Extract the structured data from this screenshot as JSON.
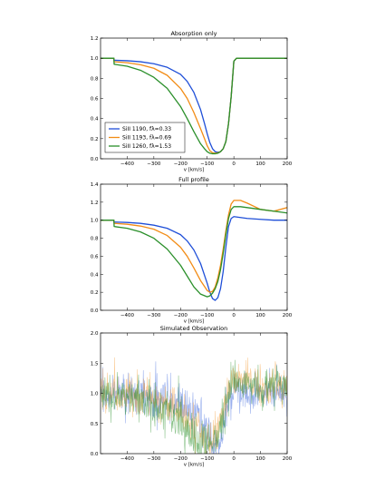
{
  "chart_data": [
    {
      "type": "line",
      "title": "Absorption only",
      "xlabel": "v [km/s]",
      "ylabel": "",
      "xlim": [
        -500,
        200
      ],
      "ylim": [
        0.0,
        1.2
      ],
      "xticks": [
        -400,
        -300,
        -200,
        -100,
        0,
        100,
        200
      ],
      "yticks": [
        0.0,
        0.2,
        0.4,
        0.6,
        0.8,
        1.0,
        1.2
      ],
      "grid": false,
      "legend": {
        "placement": "lower-left",
        "entries": [
          "SiII 1190, fλ=0.33",
          "SiII 1193, fλ=0.69",
          "SiII 1260, fλ=1.53"
        ]
      },
      "series": [
        {
          "name": "SiII 1190, fλ=0.33",
          "color": "#1f4fd8",
          "x": [
            -500,
            -450,
            -449,
            -400,
            -350,
            -300,
            -250,
            -200,
            -175,
            -150,
            -125,
            -110,
            -100,
            -90,
            -80,
            -70,
            -60,
            -50,
            -40,
            -30,
            -20,
            -10,
            0,
            10,
            50,
            100,
            150,
            200
          ],
          "y": [
            1.0,
            1.0,
            0.98,
            0.975,
            0.965,
            0.945,
            0.91,
            0.84,
            0.77,
            0.66,
            0.49,
            0.35,
            0.25,
            0.16,
            0.1,
            0.07,
            0.065,
            0.07,
            0.1,
            0.17,
            0.35,
            0.62,
            0.97,
            1.0,
            1.0,
            1.0,
            1.0,
            1.0
          ]
        },
        {
          "name": "SiII 1193, fλ=0.69",
          "color": "#f28c16",
          "x": [
            -500,
            -450,
            -449,
            -400,
            -350,
            -300,
            -250,
            -200,
            -175,
            -150,
            -125,
            -110,
            -100,
            -90,
            -80,
            -70,
            -60,
            -50,
            -40,
            -30,
            -20,
            -10,
            0,
            10,
            50,
            100,
            150,
            200
          ],
          "y": [
            1.0,
            1.0,
            0.965,
            0.955,
            0.935,
            0.9,
            0.83,
            0.7,
            0.6,
            0.46,
            0.3,
            0.2,
            0.13,
            0.08,
            0.06,
            0.055,
            0.06,
            0.07,
            0.1,
            0.17,
            0.35,
            0.62,
            0.97,
            1.0,
            1.0,
            1.0,
            1.0,
            1.0
          ]
        },
        {
          "name": "SiII 1260, fλ=1.53",
          "color": "#2a8f2a",
          "x": [
            -500,
            -450,
            -449,
            -400,
            -350,
            -300,
            -250,
            -200,
            -175,
            -150,
            -125,
            -110,
            -100,
            -90,
            -80,
            -70,
            -60,
            -50,
            -40,
            -30,
            -20,
            -10,
            0,
            10,
            50,
            100,
            150,
            200
          ],
          "y": [
            1.0,
            1.0,
            0.94,
            0.92,
            0.88,
            0.81,
            0.7,
            0.52,
            0.4,
            0.27,
            0.15,
            0.1,
            0.07,
            0.055,
            0.05,
            0.05,
            0.055,
            0.07,
            0.1,
            0.17,
            0.35,
            0.62,
            0.97,
            1.0,
            1.0,
            1.0,
            1.0,
            1.0
          ]
        }
      ]
    },
    {
      "type": "line",
      "title": "Full profile",
      "xlabel": "v [km/s]",
      "ylabel": "",
      "xlim": [
        -500,
        200
      ],
      "ylim": [
        0.0,
        1.4
      ],
      "xticks": [
        -400,
        -300,
        -200,
        -100,
        0,
        100,
        200
      ],
      "yticks": [
        0.0,
        0.2,
        0.4,
        0.6,
        0.8,
        1.0,
        1.2,
        1.4
      ],
      "grid": false,
      "series": [
        {
          "name": "SiII 1190, fλ=0.33",
          "color": "#1f4fd8",
          "x": [
            -500,
            -450,
            -449,
            -400,
            -350,
            -300,
            -250,
            -200,
            -175,
            -150,
            -125,
            -100,
            -90,
            -80,
            -70,
            -60,
            -50,
            -40,
            -30,
            -20,
            -10,
            0,
            25,
            50,
            100,
            150,
            200
          ],
          "y": [
            1.0,
            1.0,
            0.98,
            0.975,
            0.965,
            0.945,
            0.91,
            0.84,
            0.77,
            0.67,
            0.52,
            0.3,
            0.2,
            0.13,
            0.11,
            0.14,
            0.24,
            0.43,
            0.7,
            0.93,
            1.02,
            1.04,
            1.03,
            1.02,
            1.01,
            1.0,
            1.0
          ]
        },
        {
          "name": "SiII 1193, fλ=0.69",
          "color": "#f28c16",
          "x": [
            -500,
            -450,
            -449,
            -400,
            -350,
            -300,
            -250,
            -200,
            -175,
            -150,
            -125,
            -100,
            -90,
            -80,
            -70,
            -60,
            -50,
            -40,
            -30,
            -20,
            -10,
            0,
            25,
            50,
            100,
            150,
            200
          ],
          "y": [
            1.0,
            1.0,
            0.965,
            0.955,
            0.935,
            0.9,
            0.83,
            0.7,
            0.6,
            0.47,
            0.33,
            0.22,
            0.2,
            0.21,
            0.26,
            0.36,
            0.5,
            0.68,
            0.88,
            1.06,
            1.18,
            1.22,
            1.22,
            1.19,
            1.12,
            1.1,
            1.14
          ]
        },
        {
          "name": "SiII 1260, fλ=1.53",
          "color": "#2a8f2a",
          "x": [
            -500,
            -450,
            -449,
            -400,
            -350,
            -300,
            -250,
            -200,
            -175,
            -150,
            -125,
            -100,
            -90,
            -80,
            -70,
            -60,
            -50,
            -40,
            -30,
            -20,
            -10,
            0,
            25,
            50,
            100,
            150,
            200
          ],
          "y": [
            1.0,
            1.0,
            0.93,
            0.91,
            0.87,
            0.8,
            0.68,
            0.5,
            0.38,
            0.26,
            0.18,
            0.15,
            0.16,
            0.19,
            0.24,
            0.32,
            0.45,
            0.63,
            0.84,
            1.02,
            1.12,
            1.15,
            1.15,
            1.14,
            1.12,
            1.1,
            1.08
          ]
        }
      ]
    },
    {
      "type": "line",
      "title": "Simulated Observation",
      "xlabel": "v [km/s]",
      "ylabel": "",
      "xlim": [
        -500,
        200
      ],
      "ylim": [
        0.0,
        2.0
      ],
      "xticks": [
        -400,
        -300,
        -200,
        -100,
        0,
        100,
        200
      ],
      "yticks": [
        0.0,
        0.5,
        1.0,
        1.5,
        2.0
      ],
      "grid": false,
      "noise_sigma": 0.2,
      "series": [
        {
          "name": "SiII 1190, fλ=0.33",
          "color": "#1f4fd8",
          "opacity": 0.45,
          "x": [
            -500,
            -450,
            -400,
            -350,
            -300,
            -250,
            -200,
            -175,
            -150,
            -125,
            -100,
            -80,
            -60,
            -40,
            -20,
            0,
            50,
            100,
            150,
            200
          ],
          "y": [
            1.0,
            0.99,
            0.975,
            0.965,
            0.945,
            0.91,
            0.84,
            0.77,
            0.67,
            0.52,
            0.3,
            0.13,
            0.14,
            0.43,
            0.93,
            1.04,
            1.02,
            1.0,
            1.0,
            1.0
          ]
        },
        {
          "name": "SiII 1193, fλ=0.69",
          "color": "#f28c16",
          "opacity": 0.45,
          "x": [
            -500,
            -450,
            -400,
            -350,
            -300,
            -250,
            -200,
            -175,
            -150,
            -125,
            -100,
            -80,
            -60,
            -40,
            -20,
            0,
            50,
            100,
            150,
            200
          ],
          "y": [
            1.0,
            0.97,
            0.955,
            0.935,
            0.9,
            0.83,
            0.7,
            0.6,
            0.47,
            0.33,
            0.22,
            0.21,
            0.36,
            0.68,
            1.06,
            1.22,
            1.19,
            1.12,
            1.1,
            1.14
          ]
        },
        {
          "name": "SiII 1260, fλ=1.53",
          "color": "#2a8f2a",
          "opacity": 0.55,
          "x": [
            -500,
            -450,
            -400,
            -350,
            -300,
            -250,
            -200,
            -175,
            -150,
            -125,
            -100,
            -80,
            -60,
            -40,
            -20,
            0,
            50,
            100,
            150,
            200
          ],
          "y": [
            1.0,
            0.95,
            0.91,
            0.87,
            0.8,
            0.68,
            0.5,
            0.38,
            0.26,
            0.18,
            0.15,
            0.19,
            0.32,
            0.63,
            1.02,
            1.15,
            1.14,
            1.12,
            1.1,
            1.08
          ]
        }
      ]
    }
  ]
}
